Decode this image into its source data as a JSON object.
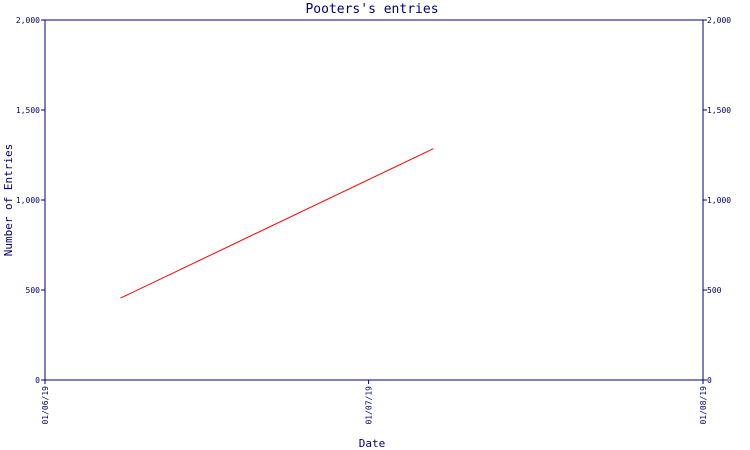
{
  "chart_data": {
    "type": "line",
    "title": "Pooters's entries",
    "xlabel": "Date",
    "ylabel": "Number of Entries",
    "x_ticks": [
      "01/06/19",
      "01/07/19",
      "01/08/19"
    ],
    "y_ticks": [
      "0",
      "500",
      "1,000",
      "1,500",
      "2,000"
    ],
    "y_ticks_right": [
      "0",
      "500",
      "1,000",
      "1,500",
      "2,000"
    ],
    "ylim": [
      0,
      2000
    ],
    "xlim": [
      "2019-06-01",
      "2019-08-01"
    ],
    "grid": false,
    "series": [
      {
        "color": "#ff0000",
        "x": [
          "2019-06-08",
          "2019-07-07"
        ],
        "y": [
          455,
          1285
        ]
      }
    ]
  },
  "colors": {
    "frame": "#00006e",
    "series": "#ff0000",
    "background": "#ffffff"
  }
}
